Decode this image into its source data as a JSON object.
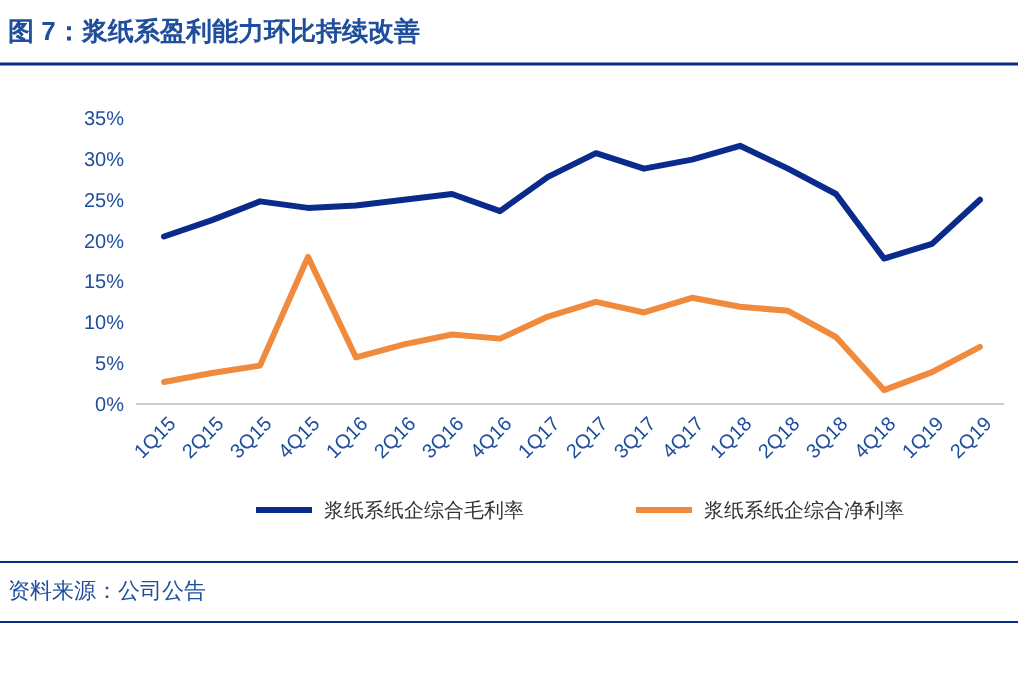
{
  "chart_data": {
    "type": "line",
    "title": "图 7：浆纸系盈利能力环比持续改善",
    "categories": [
      "1Q15",
      "2Q15",
      "3Q15",
      "4Q15",
      "1Q16",
      "2Q16",
      "3Q16",
      "4Q16",
      "1Q17",
      "2Q17",
      "3Q17",
      "4Q17",
      "1Q18",
      "2Q18",
      "3Q18",
      "4Q18",
      "1Q19",
      "2Q19"
    ],
    "series": [
      {
        "name": "浆纸系纸企综合毛利率",
        "color": "#0a2b8c",
        "values": [
          20.5,
          22.5,
          24.8,
          24.0,
          24.3,
          25.0,
          25.7,
          23.6,
          27.8,
          30.7,
          28.8,
          29.9,
          31.6,
          28.8,
          25.7,
          17.8,
          19.6,
          25.0
        ]
      },
      {
        "name": "浆纸系纸企综合净利率",
        "color": "#f08a3c",
        "values": [
          2.7,
          3.8,
          4.7,
          18.0,
          5.7,
          7.3,
          8.5,
          8.0,
          10.7,
          12.5,
          11.2,
          13.0,
          11.9,
          11.4,
          8.2,
          1.7,
          3.9,
          7.0
        ]
      }
    ],
    "ylim": [
      0,
      35
    ],
    "yticks": [
      {
        "value": 0,
        "label": "0%"
      },
      {
        "value": 5,
        "label": "5%"
      },
      {
        "value": 10,
        "label": "10%"
      },
      {
        "value": 15,
        "label": "15%"
      },
      {
        "value": 20,
        "label": "20%"
      },
      {
        "value": 25,
        "label": "25%"
      },
      {
        "value": 30,
        "label": "30%"
      },
      {
        "value": 35,
        "label": "35%"
      }
    ],
    "grid": false,
    "legend": "bottom",
    "marker": "none",
    "line_style": "solid",
    "annotations": [
      "资料来源：公司公告"
    ]
  }
}
